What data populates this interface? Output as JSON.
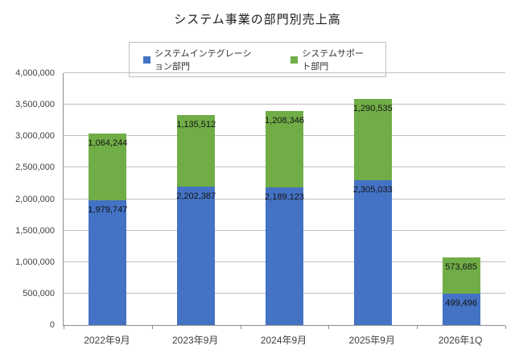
{
  "chart_data": {
    "type": "bar",
    "stacked": true,
    "title": "システム事業の部門別売上高",
    "categories": [
      "2022年9月",
      "2023年9月",
      "2024年9月",
      "2025年9月",
      "2026年1Q"
    ],
    "series": [
      {
        "name": "システムインテグレーション部門",
        "color": "#4472C4",
        "values": [
          1979747,
          2202387,
          2189123,
          2305033,
          499496
        ]
      },
      {
        "name": "システムサポート部門",
        "color": "#70AD47",
        "values": [
          1064244,
          1135512,
          1208346,
          1290535,
          573685
        ]
      }
    ],
    "data_labels": [
      "1,979,747",
      "2,202,387",
      "2,189,123",
      "2,305,033",
      "499,496",
      "1,064,244",
      "1,135,512",
      "1,208,346",
      "1,290,535",
      "573,685"
    ],
    "ylim": [
      0,
      4000000
    ],
    "ytick_interval": 500000,
    "ytick_labels": [
      "0",
      "500,000",
      "1,000,000",
      "1,500,000",
      "2,000,000",
      "2,500,000",
      "3,000,000",
      "3,500,000",
      "4,000,000"
    ],
    "grid": true,
    "legend_position": "top",
    "data_label_position": "inside-end"
  },
  "colors": {
    "series_integration": "#4472C4",
    "series_support": "#70AD47",
    "gridline": "#bfbfbf",
    "axis_line": "#8c8c8c",
    "axis_text": "#404040",
    "data_label_text": "#141414",
    "background": "#ffffff"
  }
}
